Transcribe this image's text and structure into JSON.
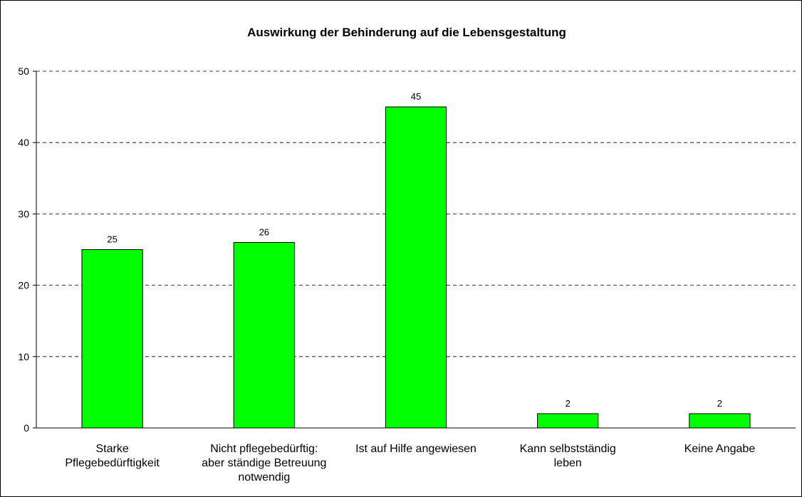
{
  "chart_data": {
    "type": "bar",
    "title": "Auswirkung der Behinderung auf die Lebensgestaltung",
    "categories": [
      [
        "Starke",
        "Pflegebedürftigkeit"
      ],
      [
        "Nicht pflegebedürftig:",
        "aber ständige Betreuung",
        "notwendig"
      ],
      [
        "Ist auf Hilfe angewiesen"
      ],
      [
        "Kann selbstständig",
        "leben"
      ],
      [
        "Keine Angabe"
      ]
    ],
    "values": [
      25,
      26,
      45,
      2,
      2
    ],
    "color": "#00ff00",
    "ylim": [
      0,
      50
    ],
    "yticks": [
      0,
      10,
      20,
      30,
      40,
      50
    ],
    "grid": true
  }
}
